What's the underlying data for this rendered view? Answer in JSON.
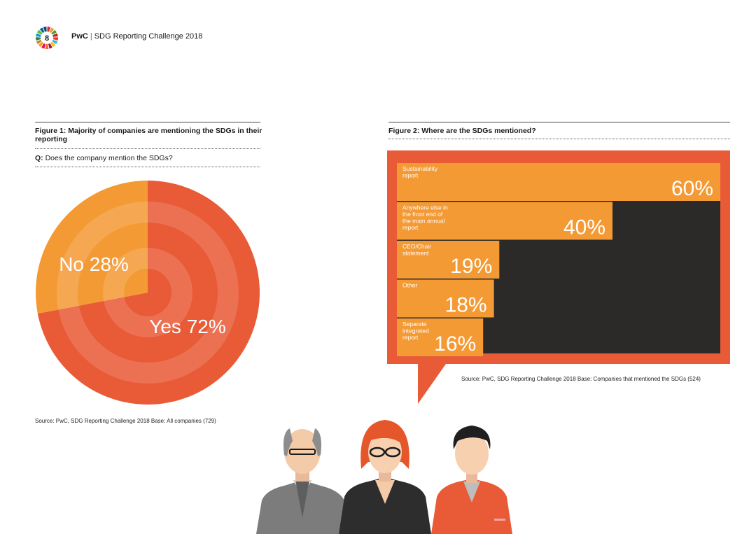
{
  "header": {
    "page_number": "8",
    "brand": "PwC",
    "title": "SDG Reporting Challenge 2018",
    "logo_colors": [
      "#e5243b",
      "#dda63a",
      "#4c9f38",
      "#c5192d",
      "#ff3a21",
      "#26bde2",
      "#fcc30b",
      "#a21942",
      "#fd6925",
      "#dd1367",
      "#fd9d24",
      "#bf8b2e",
      "#3f7e44",
      "#0a97d9",
      "#56c02b",
      "#00689d",
      "#19486a"
    ]
  },
  "figure1": {
    "title": "Figure 1: Majority of companies are mentioning the SDGs in their reporting",
    "question_prefix": "Q:",
    "question_text": " Does the company mention the SDGs?",
    "source": "Source: PwC, SDG Reporting Challenge 2018  Base: All companies (729)"
  },
  "figure2": {
    "title": "Figure 2: Where are the SDGs mentioned?",
    "source": "Source: PwC, SDG Reporting Challenge 2018  Base: Companies that mentioned the SDGs (524)"
  },
  "chart_data": [
    {
      "type": "pie",
      "title": "Figure 1: Majority of companies are mentioning the SDGs in their reporting",
      "slices": [
        {
          "label": "Yes",
          "value": 72,
          "display": "Yes 72%",
          "color": "#e95a37"
        },
        {
          "label": "No",
          "value": 28,
          "display": "No 28%",
          "color": "#f49a35"
        }
      ]
    },
    {
      "type": "bar",
      "title": "Figure 2: Where are the SDGs mentioned?",
      "orientation": "horizontal",
      "categories": [
        "Sustainability report",
        "Anywhere else in the front end of the main annual report",
        "CEO/Chair statement",
        "Other",
        "Separate integrated report"
      ],
      "labels_wrapped": [
        [
          "Sustainability",
          "report"
        ],
        [
          "Anywhere else in",
          "the front end of",
          "the main annual",
          "report"
        ],
        [
          "CEO/Chair",
          "statement"
        ],
        [
          "Other"
        ],
        [
          "Separate",
          "integrated",
          "report"
        ]
      ],
      "values": [
        60,
        40,
        19,
        18,
        16
      ],
      "value_labels": [
        "60%",
        "40%",
        "19%",
        "18%",
        "16%"
      ],
      "xlim": [
        0,
        60
      ],
      "colors": {
        "bar": "#f49a35",
        "panel": "#2b2a29",
        "frame": "#e95a37"
      }
    }
  ]
}
